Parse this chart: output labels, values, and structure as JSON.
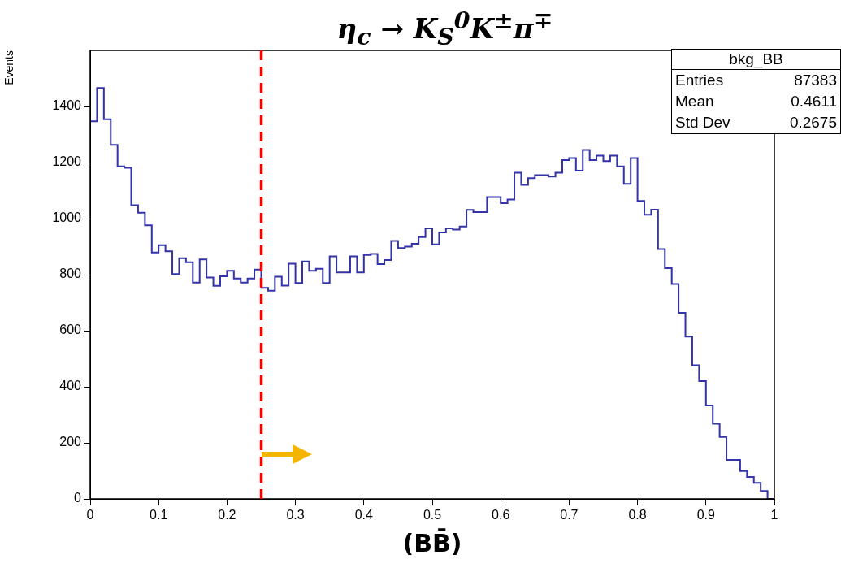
{
  "chart_data": {
    "type": "histogram",
    "title": "η$_{c}$ → K$_{S}$$^{0}$K$^{±}$π$^{∓}$",
    "xlabel": "(BB̄)",
    "ylabel": "Events",
    "bins": [
      0,
      0.01,
      0.02,
      0.03,
      0.04,
      0.05,
      0.06,
      0.07,
      0.08,
      0.09,
      0.1,
      0.11,
      0.12,
      0.13,
      0.14,
      0.15,
      0.16,
      0.17,
      0.18,
      0.19,
      0.2,
      0.21,
      0.22,
      0.23,
      0.24,
      0.25,
      0.26,
      0.27,
      0.28,
      0.29,
      0.3,
      0.31,
      0.32,
      0.33,
      0.34,
      0.35,
      0.36,
      0.37,
      0.38,
      0.39,
      0.4,
      0.41,
      0.42,
      0.43,
      0.44,
      0.45,
      0.46,
      0.47,
      0.48,
      0.49,
      0.5,
      0.51,
      0.52,
      0.53,
      0.54,
      0.55,
      0.56,
      0.57,
      0.58,
      0.59,
      0.6,
      0.61,
      0.62,
      0.63,
      0.64,
      0.65,
      0.66,
      0.67,
      0.68,
      0.69,
      0.7,
      0.71,
      0.72,
      0.73,
      0.74,
      0.75,
      0.76,
      0.77,
      0.78,
      0.79,
      0.8,
      0.81,
      0.82,
      0.83,
      0.84,
      0.85,
      0.86,
      0.87,
      0.88,
      0.89,
      0.9,
      0.91,
      0.92,
      0.93,
      0.94,
      0.95,
      0.96,
      0.97,
      0.98,
      0.99,
      1
    ],
    "values": [
      1347,
      1466,
      1354,
      1263,
      1186,
      1181,
      1048,
      1021,
      976,
      879,
      905,
      883,
      802,
      859,
      844,
      772,
      854,
      790,
      760,
      794,
      814,
      786,
      772,
      786,
      818,
      753,
      743,
      793,
      761,
      839,
      770,
      847,
      814,
      821,
      770,
      865,
      808,
      808,
      865,
      808,
      870,
      874,
      838,
      852,
      920,
      895,
      900,
      910,
      934,
      965,
      908,
      951,
      965,
      961,
      972,
      1031,
      1023,
      1023,
      1077,
      1077,
      1055,
      1068,
      1164,
      1120,
      1144,
      1155,
      1155,
      1150,
      1164,
      1209,
      1216,
      1171,
      1245,
      1209,
      1225,
      1205,
      1225,
      1186,
      1124,
      1216,
      1063,
      1014,
      1032,
      891,
      823,
      767,
      664,
      579,
      477,
      420,
      333,
      268,
      221,
      139,
      139,
      99,
      78,
      57,
      28,
      0
    ],
    "color": "#3333aa",
    "xlim": [
      0,
      1
    ],
    "xticks": [
      0,
      0.1,
      0.2,
      0.3,
      0.4,
      0.5,
      0.6,
      0.7,
      0.8,
      0.9,
      1
    ],
    "ylim": [
      0,
      1600
    ],
    "yticks": [
      0,
      200,
      400,
      600,
      800,
      1000,
      1200,
      1400
    ],
    "grid": false,
    "legend": false,
    "ref_lines": [
      {
        "axis": "x",
        "value": 0.25,
        "color": "#ff0000",
        "line_style": "dashed"
      }
    ],
    "annotations": [
      "bkg_BB",
      "Entries 87383",
      "Mean 0.4611",
      "Std Dev 0.2675"
    ]
  }
}
